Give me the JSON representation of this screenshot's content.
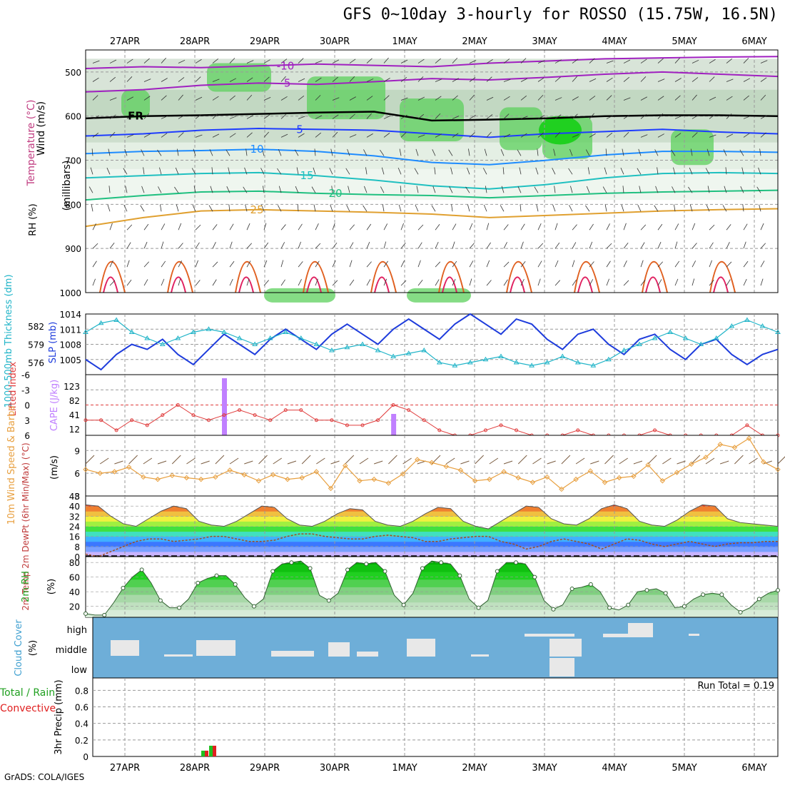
{
  "title": "GFS 0~10day 3-hourly for ROSSO (15.75W, 16.5N)",
  "credit": "GrADS: COLA/IGES",
  "colors": {
    "purple": "#a020c0",
    "black": "#000000",
    "blue": "#1e3cff",
    "skyblue": "#1e8cff",
    "teal": "#20c0c0",
    "green": "#20c080",
    "yellow": "#e0a030",
    "orange": "#e06020",
    "red": "#e02060",
    "slp": "#1e3cdc",
    "thick": "#20b4c8",
    "li": "#e03c3c",
    "cape": "#c080ff",
    "wind10": "#e8a040",
    "cloudbg": "#6eaed8",
    "cloud": "#e8e8e8",
    "rhgreen": "#20c020",
    "precipGreen": "#20c020",
    "precipRed": "#e02020"
  },
  "chart_data": [
    {
      "id": "upper-air",
      "type": "heatmap",
      "x_dates": [
        "27APR",
        "28APR",
        "29APR",
        "30APR",
        "1MAY",
        "2MAY",
        "3MAY",
        "4MAY",
        "5MAY",
        "6MAY"
      ],
      "left_label_wind": "Wind (m/s)",
      "left_label_temp": "Temperature (°C)",
      "left_label_rh": "RH (%)",
      "ylabel": "(millibars)",
      "ylim": [
        1000,
        450
      ],
      "yticks": [
        500,
        600,
        700,
        800,
        900,
        1000
      ],
      "contour_labels": [
        {
          "text": "-10",
          "color": "purple"
        },
        {
          "text": "-5",
          "color": "purple"
        },
        {
          "text": "FR",
          "color": "black"
        },
        {
          "text": "5",
          "color": "blue"
        },
        {
          "text": "10",
          "color": "skyblue"
        },
        {
          "text": "15",
          "color": "teal"
        },
        {
          "text": "20",
          "color": "green"
        },
        {
          "text": "25",
          "color": "yellow"
        }
      ],
      "isotherms": [
        {
          "label": "-10",
          "color": "purple",
          "p": [
            492,
            488,
            490,
            486,
            482,
            485,
            488,
            480,
            475,
            470,
            468,
            466,
            465
          ]
        },
        {
          "label": "-5",
          "color": "purple",
          "p": [
            545,
            540,
            530,
            525,
            528,
            522,
            515,
            518,
            512,
            505,
            500,
            505,
            510
          ]
        },
        {
          "label": "FR",
          "color": "black",
          "p": [
            605,
            600,
            598,
            595,
            592,
            590,
            610,
            608,
            605,
            600,
            598,
            598,
            600
          ]
        },
        {
          "label": "5",
          "color": "blue",
          "p": [
            645,
            640,
            632,
            628,
            630,
            632,
            640,
            648,
            640,
            635,
            630,
            636,
            640
          ]
        },
        {
          "label": "10",
          "color": "skyblue",
          "p": [
            685,
            680,
            678,
            675,
            680,
            690,
            705,
            710,
            700,
            688,
            680,
            680,
            682
          ]
        },
        {
          "label": "15",
          "color": "teal",
          "p": [
            740,
            735,
            730,
            728,
            735,
            745,
            758,
            765,
            755,
            740,
            730,
            728,
            730
          ]
        },
        {
          "label": "20",
          "color": "green",
          "p": [
            790,
            780,
            772,
            770,
            775,
            778,
            780,
            785,
            780,
            775,
            772,
            770,
            768
          ]
        },
        {
          "label": "25",
          "color": "yellow",
          "p": [
            850,
            830,
            815,
            812,
            815,
            818,
            822,
            830,
            825,
            820,
            815,
            812,
            810
          ]
        }
      ]
    },
    {
      "id": "slp-thickness",
      "type": "line",
      "left_label": "1000-500mb Thickness (dm)",
      "right_label": "SLP (mb)",
      "yticks_left": [
        "582",
        "579",
        "576"
      ],
      "yticks_right": [
        "1014",
        "1011",
        "1008",
        "1005"
      ],
      "ylim_slp": [
        1002,
        1014
      ],
      "ylim_thick": [
        574,
        584
      ],
      "series": [
        {
          "name": "SLP (mb)",
          "color": "slp",
          "values": [
            1005,
            1003,
            1006,
            1008,
            1007,
            1009,
            1006,
            1004,
            1007,
            1010,
            1008,
            1006,
            1009,
            1011,
            1009,
            1007,
            1010,
            1012,
            1010,
            1008,
            1011,
            1013,
            1011,
            1009,
            1012,
            1014,
            1012,
            1010,
            1013,
            1012,
            1009,
            1007,
            1010,
            1011,
            1008,
            1006,
            1009,
            1010,
            1007,
            1005,
            1008,
            1009,
            1006,
            1004,
            1006,
            1007
          ]
        },
        {
          "name": "1000-500mb Thickness (dm)",
          "color": "thick",
          "values": [
            581,
            582.5,
            583,
            581,
            580,
            579,
            580,
            581,
            581.5,
            581,
            580,
            579,
            580,
            581,
            580,
            579,
            578,
            578.5,
            579,
            578,
            577,
            577.5,
            578,
            576,
            575.5,
            576,
            576.5,
            577,
            576,
            575.5,
            576,
            577,
            576,
            575.5,
            576.5,
            578,
            579,
            580,
            581,
            580,
            579,
            580,
            582,
            583,
            582,
            581
          ]
        }
      ]
    },
    {
      "id": "li-cape",
      "type": "bar",
      "left_label": "Lifted Index",
      "right_label": "CAPE (J/kg)",
      "yticks_li": [
        "-6",
        "-3",
        "0",
        "3",
        "6"
      ],
      "yticks_cape": [
        "123",
        "82",
        "41",
        "12"
      ],
      "series": [
        {
          "name": "Lifted Index",
          "color": "li",
          "values": [
            3,
            3,
            5,
            3,
            4,
            2,
            0,
            2,
            3,
            2,
            1,
            2,
            3,
            1,
            1,
            3,
            3,
            4,
            4,
            3,
            0,
            1,
            3,
            5,
            6,
            6,
            5,
            4,
            5,
            6,
            6,
            6,
            5,
            6,
            6,
            6,
            6,
            5,
            6,
            6,
            6,
            6,
            6,
            4,
            6,
            6
          ]
        },
        {
          "name": "CAPE (J/kg)",
          "color": "cape",
          "values": [
            0,
            0,
            0,
            0,
            0,
            0,
            0,
            0,
            0,
            160,
            0,
            0,
            0,
            0,
            0,
            0,
            0,
            0,
            0,
            0,
            60,
            0,
            0,
            0,
            0,
            0,
            0,
            0,
            0,
            0,
            0,
            0,
            0,
            0,
            0,
            0,
            0,
            0,
            0,
            0,
            0,
            0,
            0,
            0,
            0,
            0
          ]
        }
      ]
    },
    {
      "id": "wind10",
      "type": "line",
      "left_label": "10m Wind Speed & Barbs",
      "unit": "(m/s)",
      "yticks": [
        "9",
        "6",
        "3"
      ],
      "ylim": [
        3,
        11
      ],
      "series": [
        {
          "name": "10m Wind Speed",
          "color": "wind10",
          "values": [
            6.5,
            6,
            6.2,
            6.8,
            5.5,
            5.2,
            5.7,
            5.4,
            5.2,
            5.5,
            6.4,
            5.8,
            5,
            5.8,
            5.2,
            5.4,
            6.2,
            4,
            7,
            5,
            5.2,
            4.7,
            5.9,
            7.8,
            7.4,
            6.9,
            6.4,
            5,
            5.2,
            6.2,
            5.4,
            4.8,
            5.5,
            3.9,
            5.2,
            6.3,
            4.8,
            5.4,
            5.6,
            7.1,
            5,
            6.1,
            7.2,
            8.1,
            9.8,
            9.4,
            10.6,
            7.5,
            6.5
          ]
        }
      ]
    },
    {
      "id": "temp2m",
      "type": "area",
      "left_label": "2m Temp 2m DewPt (6hr Min/Max) (°C)",
      "yticks": [
        "48",
        "40",
        "32",
        "24",
        "16",
        "8",
        "0"
      ],
      "ylim": [
        0,
        48
      ],
      "series": [
        {
          "name": "2m Temp",
          "values": [
            41,
            40,
            32,
            26,
            24,
            30,
            36,
            40,
            38,
            28,
            25,
            24,
            28,
            34,
            40,
            39,
            30,
            25,
            24,
            28,
            34,
            38,
            37,
            28,
            25,
            24,
            28,
            34,
            39,
            38,
            28,
            24,
            22,
            28,
            34,
            40,
            39,
            30,
            26,
            25,
            30,
            38,
            41,
            38,
            28,
            25,
            24,
            29,
            36,
            41,
            40,
            30,
            27,
            26,
            25,
            24
          ]
        },
        {
          "name": "2m DewPt",
          "values": [
            2,
            0,
            4,
            8,
            12,
            14,
            14,
            12,
            13,
            14,
            16,
            16,
            14,
            12,
            12,
            13,
            16,
            18,
            18,
            16,
            15,
            14,
            14,
            16,
            17,
            16,
            15,
            12,
            12,
            14,
            15,
            16,
            16,
            12,
            10,
            6,
            8,
            12,
            14,
            12,
            10,
            6,
            10,
            14,
            13,
            10,
            8,
            10,
            12,
            10,
            8,
            10,
            11,
            11,
            12,
            12
          ]
        }
      ]
    },
    {
      "id": "rh2m",
      "type": "area",
      "left_label": "2m RH",
      "unit": "(%)",
      "yticks": [
        "80",
        "60",
        "40",
        "20"
      ],
      "ylim": [
        5,
        88
      ],
      "series": [
        {
          "name": "2m RH",
          "color": "rhgreen",
          "values": [
            10,
            8,
            8,
            25,
            45,
            60,
            70,
            52,
            28,
            18,
            18,
            30,
            52,
            58,
            62,
            62,
            50,
            32,
            20,
            30,
            68,
            78,
            80,
            82,
            72,
            35,
            28,
            38,
            70,
            80,
            78,
            80,
            68,
            35,
            22,
            38,
            72,
            82,
            80,
            78,
            62,
            30,
            18,
            28,
            68,
            80,
            80,
            78,
            60,
            28,
            16,
            22,
            44,
            46,
            50,
            40,
            18,
            15,
            22,
            40,
            42,
            44,
            38,
            18,
            20,
            30,
            36,
            38,
            36,
            22,
            12,
            18,
            30,
            38,
            42
          ]
        }
      ]
    },
    {
      "id": "cloud",
      "type": "bar",
      "left_label": "Cloud Cover",
      "unit": "(%)",
      "yticks": [
        "high",
        "middle",
        "low"
      ]
    },
    {
      "id": "precip",
      "type": "bar",
      "left_label": "3hr Precip (mm)",
      "left_label_total": "Total / Rain",
      "left_label_conv": "Convective",
      "run_total": "Run Total = 0.19",
      "yticks": [
        "0.8",
        "0.6",
        "0.4",
        "0.2",
        "0"
      ],
      "ylim": [
        0,
        0.95
      ],
      "series": [
        {
          "name": "Total / Rain",
          "color": "precipGreen",
          "values": [
            0.07,
            0.13
          ]
        },
        {
          "name": "Convective",
          "color": "precipRed",
          "values": [
            0.07,
            0.13
          ]
        }
      ]
    }
  ]
}
